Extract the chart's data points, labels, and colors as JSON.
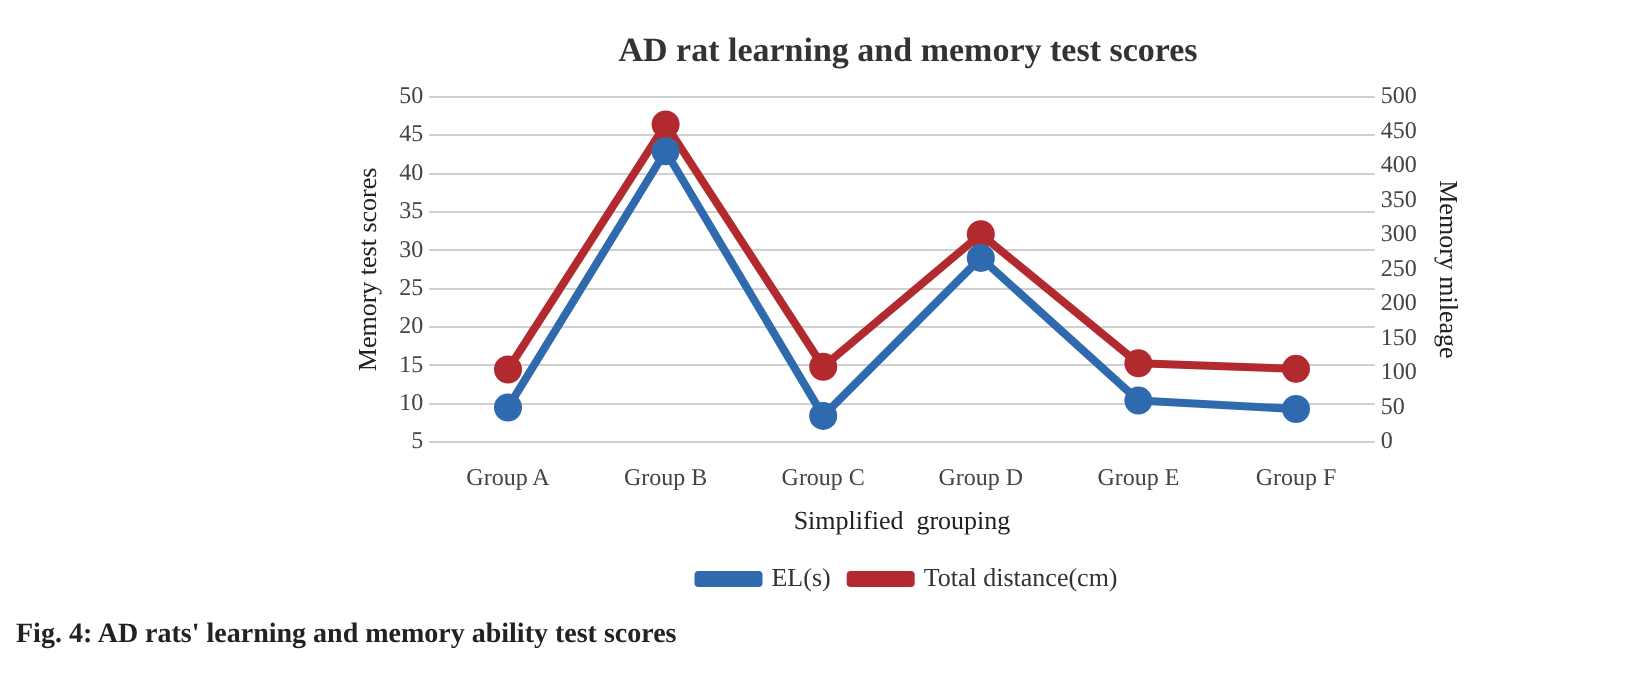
{
  "chart_data": {
    "type": "line",
    "title": "AD rat learning and memory test scores",
    "xlabel": "Simplified  grouping",
    "ylabel": "Memory test scores",
    "y2label": "Memory mileage",
    "categories": [
      "Group A",
      "Group B",
      "Group C",
      "Group D",
      "Group E",
      "Group F"
    ],
    "series": [
      {
        "name": "EL(s)",
        "color": "#2e6aad",
        "values": [
          9.5,
          42.9,
          8.4,
          29,
          10.4,
          9.3
        ]
      },
      {
        "name": "Total distance(cm)",
        "color": "#b22a2e",
        "axis": "y2",
        "values": [
          105,
          460,
          109,
          301,
          114,
          106
        ]
      }
    ],
    "ylim": [
      5,
      50
    ],
    "yticks": [
      5,
      10,
      15,
      20,
      25,
      30,
      35,
      40,
      45,
      50
    ],
    "y2lim": [
      0,
      500
    ],
    "y2ticks": [
      0,
      50,
      100,
      150,
      200,
      250,
      300,
      350,
      400,
      450,
      500
    ],
    "grid": "y",
    "legend": "bottom",
    "marker": "circle",
    "line_style": "solid",
    "annotations": [
      "Fig. 4: AD rats' learning and memory ability test scores"
    ]
  }
}
